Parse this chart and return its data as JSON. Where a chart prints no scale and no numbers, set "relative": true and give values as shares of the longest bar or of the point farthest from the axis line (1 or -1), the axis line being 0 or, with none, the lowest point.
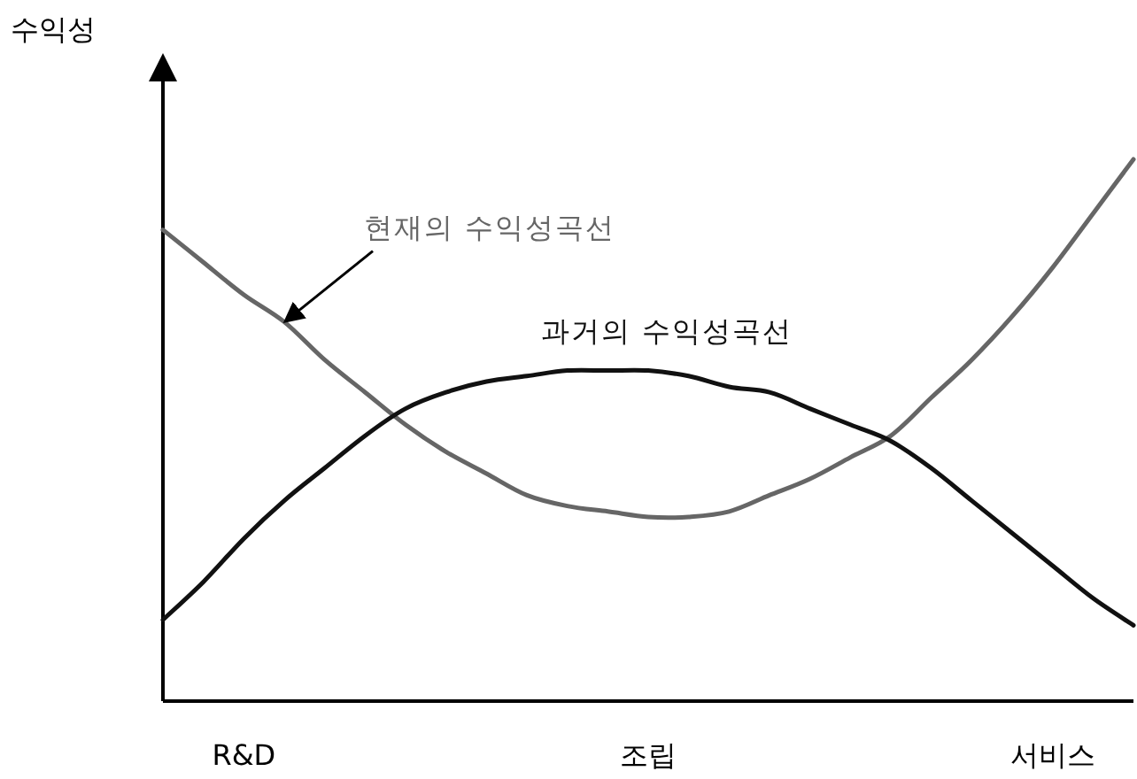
{
  "chart_data": {
    "type": "line",
    "relative": true,
    "ylabel": "수익성",
    "categories": [
      null,
      null,
      "R&D",
      null,
      null,
      null,
      null,
      null,
      null,
      null,
      null,
      null,
      "조립",
      null,
      null,
      null,
      null,
      null,
      null,
      null,
      null,
      null,
      "서비스",
      null,
      null
    ],
    "series": [
      {
        "name": "현재의 수익성곡선",
        "color": "#666666",
        "values": [
          0.87,
          0.81,
          0.75,
          0.7,
          0.63,
          0.57,
          0.51,
          0.46,
          0.42,
          0.38,
          0.36,
          0.35,
          0.34,
          0.34,
          0.35,
          0.38,
          0.41,
          0.45,
          0.49,
          0.56,
          0.63,
          0.71,
          0.8,
          0.9,
          1
        ]
      },
      {
        "name": "과거의 수익성곡선",
        "color": "#111111",
        "values": [
          0.15,
          0.22,
          0.3,
          0.37,
          0.43,
          0.49,
          0.54,
          0.57,
          0.59,
          0.6,
          0.61,
          0.61,
          0.61,
          0.6,
          0.58,
          0.57,
          0.54,
          0.51,
          0.48,
          0.43,
          0.37,
          0.31,
          0.25,
          0.19,
          0.14
        ]
      }
    ]
  }
}
